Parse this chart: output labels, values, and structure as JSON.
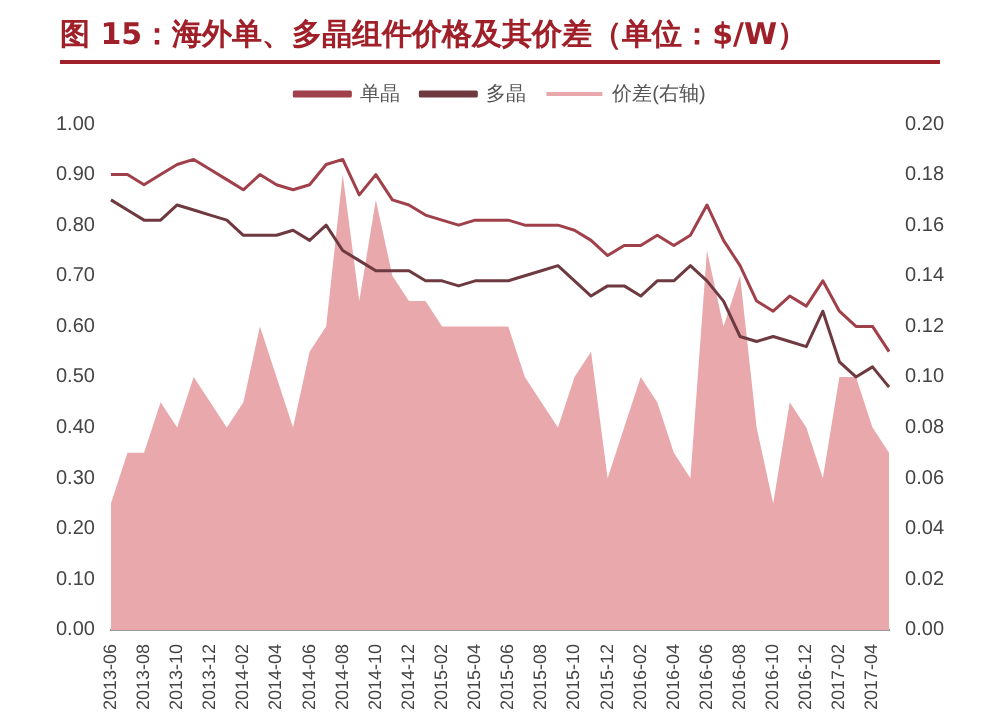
{
  "chart_data": {
    "type": "line",
    "title": "图 15：海外单、多晶组件价格及其价差（单位：$/W）",
    "categories": [
      "2013-06",
      null,
      "2013-08",
      null,
      "2013-10",
      null,
      "2013-12",
      null,
      "2014-02",
      null,
      "2014-04",
      null,
      "2014-06",
      null,
      "2014-08",
      null,
      "2014-10",
      null,
      "2014-12",
      null,
      "2015-02",
      null,
      "2015-04",
      null,
      "2015-06",
      null,
      "2015-08",
      null,
      "2015-10",
      null,
      "2015-12",
      null,
      "2016-02",
      null,
      "2016-04",
      null,
      "2016-06",
      null,
      "2016-08",
      null,
      "2016-10",
      null,
      "2016-12",
      null,
      "2017-02",
      null,
      "2017-04",
      null
    ],
    "series": [
      {
        "name": "价差(右轴)",
        "type": "area",
        "axis": "y2",
        "color": "#e8a8ac",
        "values": [
          0.05,
          0.07,
          0.07,
          0.09,
          0.08,
          0.1,
          0.09,
          0.08,
          0.09,
          0.12,
          0.1,
          0.08,
          0.11,
          0.12,
          0.18,
          0.13,
          0.17,
          0.14,
          0.13,
          0.13,
          0.12,
          0.12,
          0.12,
          0.12,
          0.12,
          0.1,
          0.09,
          0.08,
          0.1,
          0.11,
          0.06,
          0.08,
          0.1,
          0.09,
          0.07,
          0.06,
          0.15,
          0.12,
          0.14,
          0.08,
          0.05,
          0.09,
          0.08,
          0.06,
          0.1,
          0.1,
          0.08,
          0.07
        ]
      },
      {
        "name": "单晶",
        "color": "#a0404a",
        "values": [
          0.9,
          0.9,
          0.88,
          0.9,
          0.92,
          0.93,
          0.91,
          0.89,
          0.87,
          0.9,
          0.88,
          0.87,
          0.88,
          0.92,
          0.93,
          0.86,
          0.9,
          0.85,
          0.84,
          0.82,
          0.81,
          0.8,
          0.81,
          0.81,
          0.81,
          0.8,
          0.8,
          0.8,
          0.79,
          0.77,
          0.74,
          0.76,
          0.76,
          0.78,
          0.76,
          0.78,
          0.84,
          0.77,
          0.72,
          0.65,
          0.63,
          0.66,
          0.64,
          0.69,
          0.63,
          0.6,
          0.6,
          0.55
        ]
      },
      {
        "name": "多晶",
        "color": "#6e3a40",
        "values": [
          0.85,
          0.83,
          0.81,
          0.81,
          0.84,
          0.83,
          0.82,
          0.81,
          0.78,
          0.78,
          0.78,
          0.79,
          0.77,
          0.8,
          0.75,
          0.73,
          0.71,
          0.71,
          0.71,
          0.69,
          0.69,
          0.68,
          0.69,
          0.69,
          0.69,
          0.7,
          0.71,
          0.72,
          0.69,
          0.66,
          0.68,
          0.68,
          0.66,
          0.69,
          0.69,
          0.72,
          0.69,
          0.65,
          0.58,
          0.57,
          0.58,
          0.57,
          0.56,
          0.63,
          0.53,
          0.5,
          0.52,
          0.48
        ]
      }
    ],
    "ylim": [
      0,
      1
    ],
    "yticks": [
      {
        "value": 0,
        "label": "0.00"
      },
      {
        "value": 0.1,
        "label": "0.10"
      },
      {
        "value": 0.2,
        "label": "0.20"
      },
      {
        "value": 0.3,
        "label": "0.30"
      },
      {
        "value": 0.4,
        "label": "0.40"
      },
      {
        "value": 0.5,
        "label": "0.50"
      },
      {
        "value": 0.6,
        "label": "0.60"
      },
      {
        "value": 0.7,
        "label": "0.70"
      },
      {
        "value": 0.8,
        "label": "0.80"
      },
      {
        "value": 0.9,
        "label": "0.90"
      },
      {
        "value": 1,
        "label": "1.00"
      }
    ],
    "y2lim": [
      0,
      0.2
    ],
    "y2ticks": [
      {
        "value": 0,
        "label": "0.00"
      },
      {
        "value": 0.02,
        "label": "0.02"
      },
      {
        "value": 0.04,
        "label": "0.04"
      },
      {
        "value": 0.06,
        "label": "0.06"
      },
      {
        "value": 0.08,
        "label": "0.08"
      },
      {
        "value": 0.1,
        "label": "0.10"
      },
      {
        "value": 0.12,
        "label": "0.12"
      },
      {
        "value": 0.14,
        "label": "0.14"
      },
      {
        "value": 0.16,
        "label": "0.16"
      },
      {
        "value": 0.18,
        "label": "0.18"
      },
      {
        "value": 0.2,
        "label": "0.20"
      }
    ],
    "legend": "top",
    "grid": false,
    "marker": "none"
  }
}
